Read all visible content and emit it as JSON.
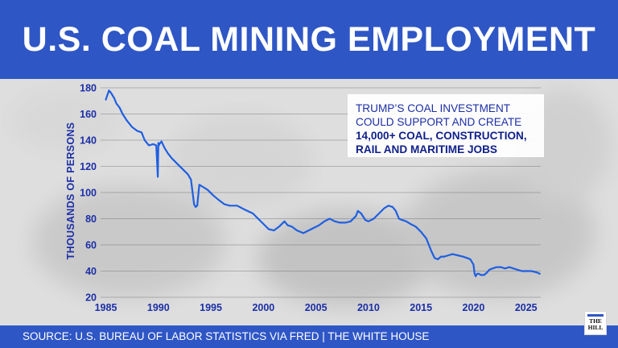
{
  "header": {
    "title": "U.S. COAL MINING EMPLOYMENT"
  },
  "callout": {
    "line1": "TRUMP’S COAL INVESTMENT",
    "line2": "COULD SUPPORT AND CREATE",
    "line3": "14,000+ COAL, CONSTRUCTION,",
    "line4": "RAIL AND MARITIME JOBS"
  },
  "footer": {
    "source": "SOURCE: U.S. BUREAU OF LABOR STATISTICS VIA FRED | THE WHITE HOUSE"
  },
  "logo": {
    "text_line1": "THE",
    "text_line2": "HILL"
  },
  "colors": {
    "brand_blue": "#2f56c5",
    "line_blue": "#1f5fe0",
    "label_blue": "#1c2fa6"
  },
  "chart_data": {
    "type": "line",
    "title": "U.S. COAL MINING EMPLOYMENT",
    "xlabel": "",
    "ylabel": "THOUSANDS OF PERSONS",
    "xlim": [
      1984.5,
      2026.4
    ],
    "ylim": [
      20,
      180
    ],
    "xticks": [
      1985,
      1990,
      1995,
      2000,
      2005,
      2010,
      2015,
      2020,
      2025
    ],
    "yticks": [
      20,
      40,
      60,
      80,
      100,
      120,
      140,
      160,
      180
    ],
    "grid": "horizontal",
    "series": [
      {
        "x": [
          1985.0,
          1985.3,
          1985.5,
          1985.8,
          1986.0,
          1986.3,
          1986.6,
          1987.0,
          1987.5,
          1988.0,
          1988.4,
          1988.7,
          1988.9,
          1989.1,
          1989.5,
          1989.8,
          1989.95,
          1990.0,
          1990.05,
          1990.1,
          1990.3,
          1990.6,
          1990.9,
          1991.3,
          1991.8,
          1992.3,
          1992.8,
          1993.1,
          1993.4,
          1993.55,
          1993.7,
          1993.9,
          1994.3,
          1994.7,
          1995.2,
          1995.8,
          1996.3,
          1996.8,
          1997.5,
          1998.2,
          1999.0,
          1999.5,
          2000.0,
          2000.5,
          2001.0,
          2001.5,
          2002.0,
          2002.3,
          2002.7,
          2003.2,
          2003.8,
          2004.3,
          2004.8,
          2005.3,
          2005.8,
          2006.3,
          2006.8,
          2007.3,
          2007.8,
          2008.3,
          2008.8,
          2009.0,
          2009.3,
          2009.7,
          2010.0,
          2010.5,
          2011.0,
          2011.5,
          2011.9,
          2012.3,
          2012.6,
          2012.9,
          2013.2,
          2013.6,
          2014.0,
          2014.5,
          2015.0,
          2015.5,
          2016.0,
          2016.3,
          2016.6,
          2016.9,
          2017.2,
          2017.6,
          2018.0,
          2018.5,
          2019.0,
          2019.4,
          2019.7,
          2020.0,
          2020.1,
          2020.2,
          2020.35,
          2020.5,
          2020.7,
          2021.0,
          2021.3,
          2021.5,
          2021.8,
          2022.2,
          2022.6,
          2023.0,
          2023.4,
          2023.8,
          2024.2,
          2024.6,
          2025.0,
          2025.5,
          2026.0,
          2026.3
        ],
        "y": [
          171,
          178,
          176,
          172,
          168,
          165,
          160,
          155,
          150,
          147,
          146,
          140,
          138,
          136,
          137,
          136,
          112,
          138,
          136,
          137,
          139,
          134,
          130,
          126,
          122,
          118,
          114,
          110,
          91,
          89,
          90,
          106,
          104,
          102,
          98,
          94,
          91,
          90,
          90,
          87,
          84,
          80,
          76,
          72,
          71,
          74,
          78,
          75,
          74,
          71,
          69,
          71,
          73,
          75,
          78,
          80,
          78,
          77,
          77,
          78,
          82,
          86,
          84,
          79,
          78,
          80,
          84,
          88,
          90,
          89,
          86,
          80,
          79,
          78,
          76,
          74,
          70,
          65,
          55,
          50,
          49,
          51,
          51,
          52,
          53,
          52,
          51,
          50,
          49,
          45,
          38,
          36,
          38,
          38,
          37,
          37,
          39,
          41,
          42,
          43,
          43,
          42,
          43,
          42,
          41,
          40,
          40,
          40,
          39,
          38
        ]
      }
    ]
  }
}
